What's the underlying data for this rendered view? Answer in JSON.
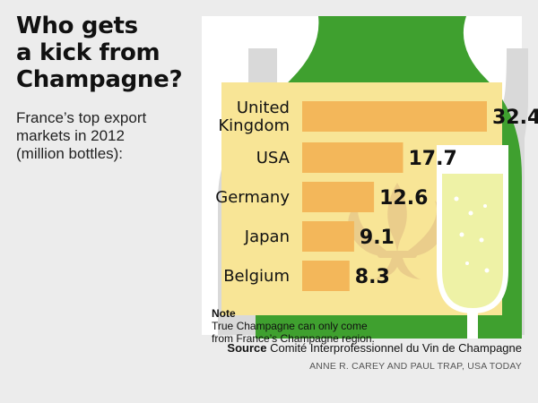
{
  "header": {
    "title_lines": [
      "Who gets",
      "a kick from",
      "Champagne?"
    ],
    "subtitle_lines": [
      "France’s top export",
      "markets in 2012",
      "(million bottles):"
    ]
  },
  "note": {
    "label": "Note",
    "lines": [
      "True Champagne can only come",
      "from France’s Champagne region."
    ]
  },
  "source": {
    "label": "Source",
    "text": "Comité Interprofessionnel du Vin de Champagne"
  },
  "credit": "ANNE R. CAREY AND PAUL TRAP, USA TODAY",
  "colors": {
    "bottle_green": "#3fa02f",
    "bar": "#f3b75a",
    "background": "#ececec",
    "grey_bottle": "#d9d9d9",
    "glass_liquid": "#eef2a6"
  },
  "icons": [
    "champagne-bottle-illustration",
    "champagne-glass-illustration",
    "fleur-de-lis-icon"
  ],
  "chart_data": {
    "type": "bar",
    "orientation": "horizontal",
    "categories": [
      "United Kingdom",
      "USA",
      "Germany",
      "Japan",
      "Belgium"
    ],
    "category_labels": [
      [
        "United",
        "Kingdom"
      ],
      [
        "USA"
      ],
      [
        "Germany"
      ],
      [
        "Japan"
      ],
      [
        "Belgium"
      ]
    ],
    "values": [
      32.4,
      17.7,
      12.6,
      9.1,
      8.3
    ],
    "value_labels": [
      "32.4",
      "17.7",
      "12.6",
      "9.1",
      "8.3"
    ],
    "title": "Who gets a kick from Champagne?",
    "subtitle": "France’s top export markets in 2012 (million bottles):",
    "grid": false,
    "legend": "none"
  }
}
